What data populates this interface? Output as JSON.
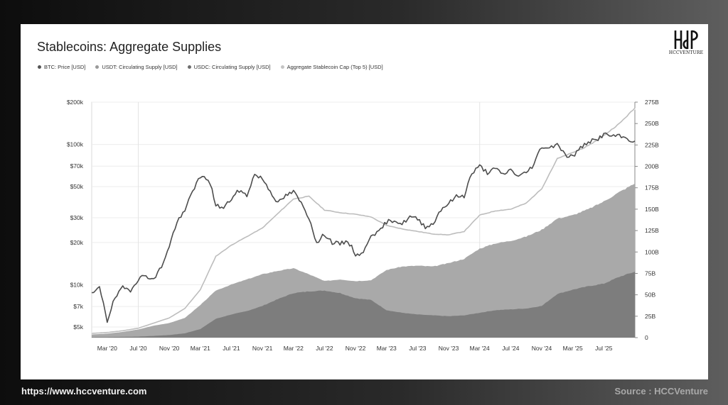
{
  "footer": {
    "url": "https://www.hccventure.com",
    "source": "Source : HCCVenture"
  },
  "logo": {
    "text": "HCCVENTURE"
  },
  "colors": {
    "btc": "#555555",
    "usdt": "#a8a8a8",
    "usdc": "#7a7a7a",
    "aggregate": "#c4c4c4"
  },
  "chart_data": {
    "type": "area",
    "title": "Stablecoins: Aggregate Supplies",
    "legend": [
      "BTC: Price [USD]",
      "USDT: Circulating Supply [USD]",
      "USDC: Circulating Supply [USD]",
      "Aggregate Stablecoin Cap (Top 5) [USD]"
    ],
    "legend_position": "top-left",
    "grid": true,
    "x_ticks": [
      "Mar '20",
      "Jul '20",
      "Nov '20",
      "Mar '21",
      "Jul '21",
      "Nov '21",
      "Mar '22",
      "Jul '22",
      "Nov '22",
      "Mar '23",
      "Jul '23",
      "Nov '23",
      "Mar '24",
      "Jul '24",
      "Nov '24",
      "Mar '25",
      "Jul '25"
    ],
    "y_left": {
      "scale": "log",
      "range": [
        4200,
        200000
      ],
      "ticks": [
        5000,
        7000,
        10000,
        20000,
        30000,
        50000,
        70000,
        100000,
        200000
      ],
      "tick_labels": [
        "$5k",
        "$7k",
        "$10k",
        "$20k",
        "$30k",
        "$50k",
        "$70k",
        "$100k",
        "$200k"
      ]
    },
    "y_right": {
      "scale": "linear",
      "range": [
        0,
        275
      ],
      "ticks": [
        0,
        25,
        50,
        75,
        100,
        125,
        150,
        175,
        200,
        225,
        250,
        275
      ],
      "tick_labels": [
        "0",
        "25B",
        "50B",
        "75B",
        "100B",
        "125B",
        "150B",
        "175B",
        "200B",
        "225B",
        "250B",
        "275B"
      ]
    },
    "x_range": [
      "2020-01",
      "2025-11"
    ],
    "series": [
      {
        "name": "BTC: Price [USD]",
        "axis": "left",
        "x": [
          "2020-01",
          "2020-02",
          "2020-03",
          "2020-04",
          "2020-05",
          "2020-06",
          "2020-07",
          "2020-08",
          "2020-09",
          "2020-10",
          "2020-11",
          "2020-12",
          "2021-01",
          "2021-02",
          "2021-03",
          "2021-04",
          "2021-05",
          "2021-06",
          "2021-07",
          "2021-08",
          "2021-09",
          "2021-10",
          "2021-11",
          "2021-12",
          "2022-01",
          "2022-02",
          "2022-03",
          "2022-04",
          "2022-05",
          "2022-06",
          "2022-07",
          "2022-08",
          "2022-09",
          "2022-10",
          "2022-11",
          "2022-12",
          "2023-01",
          "2023-02",
          "2023-03",
          "2023-04",
          "2023-05",
          "2023-06",
          "2023-07",
          "2023-08",
          "2023-09",
          "2023-10",
          "2023-11",
          "2023-12",
          "2024-01",
          "2024-02",
          "2024-03",
          "2024-04",
          "2024-05",
          "2024-06",
          "2024-07",
          "2024-08",
          "2024-09",
          "2024-10",
          "2024-11",
          "2024-12",
          "2025-01",
          "2025-02",
          "2025-03",
          "2025-04",
          "2025-05",
          "2025-06",
          "2025-07",
          "2025-08",
          "2025-09",
          "2025-10",
          "2025-11"
        ],
        "values": [
          8500,
          9500,
          5500,
          8000,
          9500,
          9200,
          11000,
          11700,
          10800,
          13500,
          18500,
          28000,
          33000,
          47000,
          58000,
          57000,
          37000,
          35000,
          41000,
          47000,
          43000,
          61000,
          57000,
          46500,
          38000,
          43000,
          46000,
          38000,
          30000,
          19500,
          23000,
          20000,
          19500,
          20500,
          16500,
          16600,
          23000,
          23500,
          28000,
          29000,
          27000,
          30500,
          29300,
          26000,
          27000,
          34500,
          38000,
          42500,
          43000,
          62000,
          70000,
          63000,
          67000,
          61000,
          66000,
          59000,
          63000,
          72000,
          97000,
          94000,
          102000,
          84000,
          82000,
          94000,
          105000,
          107000,
          118000,
          115000,
          114000,
          110000,
          104000
        ]
      },
      {
        "name": "USDT: Circulating Supply [USD]",
        "axis": "right",
        "x": [
          "2020-01",
          "2020-03",
          "2020-05",
          "2020-07",
          "2020-09",
          "2020-11",
          "2021-01",
          "2021-03",
          "2021-05",
          "2021-07",
          "2021-09",
          "2021-11",
          "2022-01",
          "2022-03",
          "2022-05",
          "2022-07",
          "2022-09",
          "2022-11",
          "2023-01",
          "2023-03",
          "2023-05",
          "2023-07",
          "2023-09",
          "2023-11",
          "2024-01",
          "2024-03",
          "2024-05",
          "2024-07",
          "2024-09",
          "2024-11",
          "2025-01",
          "2025-03",
          "2025-05",
          "2025-07",
          "2025-09",
          "2025-11"
        ],
        "values": [
          4.5,
          4.8,
          7,
          9.5,
          14,
          17,
          23,
          38,
          55,
          62,
          68,
          74,
          78,
          81,
          74,
          66,
          68,
          66,
          67,
          79,
          83,
          84,
          83,
          87,
          92,
          104,
          110,
          113,
          118,
          126,
          139,
          143,
          150,
          159,
          170,
          180
        ]
      },
      {
        "name": "USDC: Circulating Supply [USD]",
        "axis": "right",
        "x": [
          "2020-01",
          "2020-03",
          "2020-05",
          "2020-07",
          "2020-09",
          "2020-11",
          "2021-01",
          "2021-03",
          "2021-05",
          "2021-07",
          "2021-09",
          "2021-11",
          "2022-01",
          "2022-03",
          "2022-05",
          "2022-07",
          "2022-09",
          "2022-11",
          "2023-01",
          "2023-03",
          "2023-05",
          "2023-07",
          "2023-09",
          "2023-11",
          "2024-01",
          "2024-03",
          "2024-05",
          "2024-07",
          "2024-09",
          "2024-11",
          "2025-01",
          "2025-03",
          "2025-05",
          "2025-07",
          "2025-09",
          "2025-11"
        ],
        "values": [
          0.5,
          0.7,
          0.9,
          1.2,
          2.0,
          3.0,
          5,
          10,
          22,
          27,
          31,
          37,
          45,
          52,
          54,
          55,
          52,
          46,
          44,
          32,
          29,
          27,
          26,
          25,
          26,
          29,
          32,
          33,
          34,
          37,
          51,
          56,
          60,
          63,
          71,
          77
        ]
      },
      {
        "name": "Aggregate Stablecoin Cap (Top 5) [USD]",
        "axis": "right",
        "x": [
          "2020-01",
          "2020-03",
          "2020-05",
          "2020-07",
          "2020-09",
          "2020-11",
          "2021-01",
          "2021-03",
          "2021-05",
          "2021-07",
          "2021-09",
          "2021-11",
          "2022-01",
          "2022-03",
          "2022-05",
          "2022-07",
          "2022-09",
          "2022-11",
          "2023-01",
          "2023-03",
          "2023-05",
          "2023-07",
          "2023-09",
          "2023-11",
          "2024-01",
          "2024-03",
          "2024-05",
          "2024-07",
          "2024-09",
          "2024-11",
          "2025-01",
          "2025-03",
          "2025-05",
          "2025-07",
          "2025-09",
          "2025-11"
        ],
        "values": [
          5,
          6,
          8,
          11,
          17,
          23,
          34,
          56,
          95,
          108,
          118,
          128,
          145,
          162,
          165,
          149,
          146,
          144,
          141,
          131,
          127,
          124,
          121,
          120,
          124,
          143,
          148,
          150,
          157,
          174,
          209,
          216,
          224,
          236,
          250,
          268
        ]
      }
    ]
  }
}
